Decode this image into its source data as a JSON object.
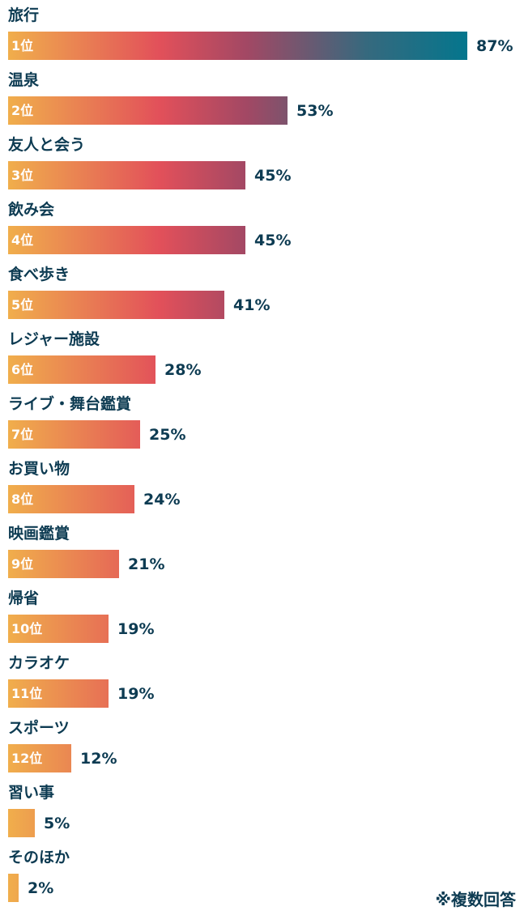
{
  "chart_data": {
    "type": "bar",
    "orientation": "horizontal",
    "categories": [
      "旅行",
      "温泉",
      "友人と会う",
      "飲み会",
      "食べ歩き",
      "レジャー施設",
      "ライブ・舞台鑑賞",
      "お買い物",
      "映画鑑賞",
      "帰省",
      "カラオケ",
      "スポーツ",
      "習い事",
      "そのほか"
    ],
    "ranks": [
      "1位",
      "2位",
      "3位",
      "4位",
      "5位",
      "6位",
      "7位",
      "8位",
      "9位",
      "10位",
      "11位",
      "12位",
      "",
      ""
    ],
    "values": [
      87,
      53,
      45,
      45,
      41,
      28,
      25,
      24,
      21,
      19,
      19,
      12,
      5,
      2
    ],
    "value_labels": [
      "87%",
      "53%",
      "45%",
      "45%",
      "41%",
      "28%",
      "25%",
      "24%",
      "21%",
      "19%",
      "19%",
      "12%",
      "5%",
      "2%"
    ],
    "unit": "%",
    "xlim": [
      0,
      100
    ],
    "grid": false,
    "legend": "none"
  },
  "footnote": "※複数回答",
  "colors": {
    "text": "#0d3b52",
    "gradient_start": "#f0ae4c",
    "gradient_mid": "#e2505a",
    "gradient_end": "#04768d"
  }
}
